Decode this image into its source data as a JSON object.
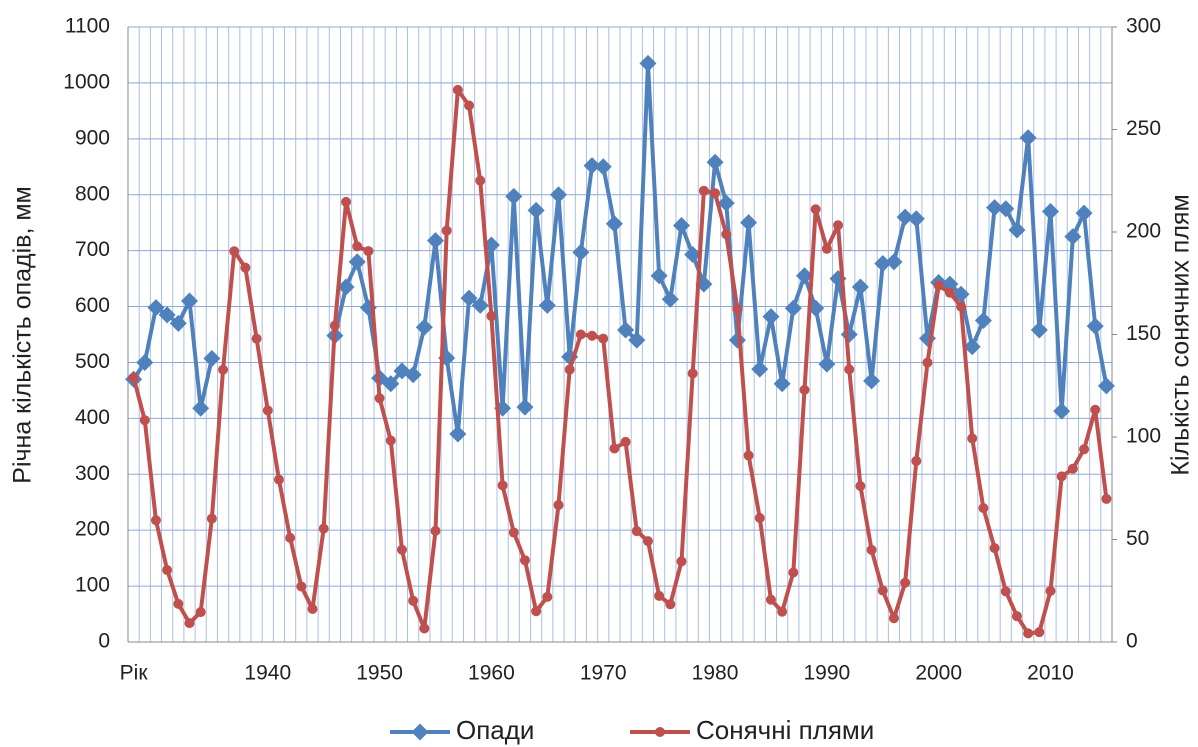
{
  "chart_data": {
    "type": "line",
    "categories": [
      "Рік",
      null,
      null,
      null,
      null,
      null,
      null,
      null,
      null,
      null,
      null,
      null,
      "1940",
      null,
      null,
      null,
      null,
      null,
      null,
      null,
      null,
      null,
      "1950",
      null,
      null,
      null,
      null,
      null,
      null,
      null,
      null,
      null,
      "1960",
      null,
      null,
      null,
      null,
      null,
      null,
      null,
      null,
      null,
      "1970",
      null,
      null,
      null,
      null,
      null,
      null,
      null,
      null,
      null,
      "1980",
      null,
      null,
      null,
      null,
      null,
      null,
      null,
      null,
      null,
      "1990",
      null,
      null,
      null,
      null,
      null,
      null,
      null,
      null,
      null,
      "2000",
      null,
      null,
      null,
      null,
      null,
      null,
      null,
      null,
      null,
      "2010",
      null,
      null,
      null,
      null,
      null
    ],
    "y_label": "Річна кількість опадів, мм",
    "y2_label": "Кількість сонячних плям",
    "ylim": [
      0,
      1100
    ],
    "yticks": [
      0,
      100,
      200,
      300,
      400,
      500,
      600,
      700,
      800,
      900,
      1000,
      1100
    ],
    "y2lim": [
      0,
      300
    ],
    "y2ticks": [
      0,
      50,
      100,
      150,
      200,
      250,
      300
    ],
    "grid": true,
    "legend": "bottom",
    "series": [
      {
        "name": "Опади",
        "color": "#4f81bd",
        "marker": "diamond",
        "values": [
          470,
          500,
          598,
          585,
          570,
          610,
          418,
          507,
          null,
          null,
          null,
          null,
          null,
          null,
          null,
          null,
          null,
          null,
          548,
          635,
          680,
          598,
          472,
          462,
          485,
          478,
          563,
          718,
          508,
          372,
          615,
          602,
          710,
          418,
          797,
          420,
          772,
          602,
          800,
          510,
          697,
          852,
          850,
          748,
          558,
          540,
          1035,
          655,
          613,
          745,
          693,
          640,
          858,
          785,
          540,
          750,
          488,
          582,
          462,
          597,
          655,
          597,
          497,
          650,
          550,
          635,
          467,
          677,
          680,
          760,
          757,
          543,
          643,
          640,
          622,
          528,
          575,
          777,
          775,
          737,
          902,
          558,
          770,
          413,
          725,
          767,
          565,
          458
        ]
      },
      {
        "name": "Сонячні плями",
        "color": "#c0504d",
        "marker": "circle",
        "axis": "y2",
        "values": [
          129,
          108.2,
          59.4,
          35.1,
          18.6,
          9.2,
          14.6,
          60.2,
          132.8,
          190.6,
          182.6,
          148.0,
          113.0,
          79.2,
          50.8,
          27.1,
          16.1,
          55.3,
          154.3,
          214.7,
          193.0,
          190.7,
          118.9,
          98.3,
          45.0,
          20.1,
          6.6,
          54.2,
          200.7,
          269.3,
          261.7,
          225.1,
          159.0,
          76.4,
          53.4,
          39.9,
          15.0,
          22.0,
          66.8,
          132.9,
          150.0,
          149.4,
          148.0,
          94.4,
          97.6,
          54.1,
          49.2,
          22.5,
          18.4,
          39.3,
          131.0,
          220.1,
          218.9,
          198.9,
          162.4,
          91.0,
          60.5,
          20.6,
          14.8,
          33.9,
          123.0,
          211.1,
          191.8,
          203.3,
          133.0,
          76.1,
          44.9,
          25.1,
          11.6,
          28.9,
          88.3,
          136.3,
          173.9,
          170.4,
          163.6,
          99.3,
          65.3,
          45.8,
          24.7,
          12.6,
          4.2,
          4.8,
          24.9,
          80.8,
          84.5,
          94.0,
          113.3,
          69.8
        ]
      }
    ]
  }
}
